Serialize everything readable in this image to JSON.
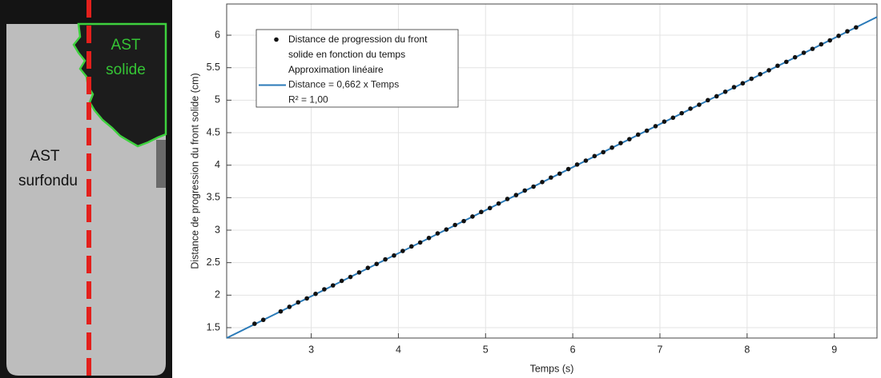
{
  "photo": {
    "solid_label": [
      "AST",
      "solide"
    ],
    "liquid_label": [
      "AST",
      "surfondu"
    ]
  },
  "chart_data": {
    "type": "scatter",
    "x_label": "Temps (s)",
    "y_label": "Distance de progression du front solide (cm)",
    "xlim": [
      2.03,
      9.49
    ],
    "ylim": [
      1.34,
      6.48
    ],
    "xticks": [
      3,
      4,
      5,
      6,
      7,
      8,
      9
    ],
    "yticks": [
      1.5,
      2,
      2.5,
      3,
      3.5,
      4,
      4.5,
      5,
      5.5,
      6
    ],
    "grid": true,
    "legend": "upper left",
    "series": [
      {
        "name": "Distance de progression du front solide en fonction du temps",
        "color": "#111111",
        "mode": "markers",
        "x": [
          2.35,
          2.45,
          2.65,
          2.75,
          2.85,
          2.95,
          3.05,
          3.15,
          3.25,
          3.35,
          3.45,
          3.55,
          3.65,
          3.75,
          3.85,
          3.95,
          4.05,
          4.15,
          4.25,
          4.35,
          4.45,
          4.55,
          4.65,
          4.75,
          4.85,
          4.95,
          5.05,
          5.15,
          5.25,
          5.35,
          5.45,
          5.55,
          5.65,
          5.75,
          5.85,
          5.95,
          6.05,
          6.15,
          6.25,
          6.35,
          6.45,
          6.55,
          6.65,
          6.75,
          6.85,
          6.95,
          7.05,
          7.15,
          7.25,
          7.35,
          7.45,
          7.55,
          7.65,
          7.75,
          7.85,
          7.95,
          8.05,
          8.15,
          8.25,
          8.35,
          8.45,
          8.55,
          8.65,
          8.75,
          8.85,
          8.95,
          9.05,
          9.15,
          9.25
        ],
        "values": [
          1.56,
          1.62,
          1.75,
          1.82,
          1.89,
          1.95,
          2.02,
          2.09,
          2.15,
          2.22,
          2.28,
          2.35,
          2.42,
          2.48,
          2.55,
          2.61,
          2.68,
          2.75,
          2.81,
          2.88,
          2.95,
          3.01,
          3.08,
          3.14,
          3.21,
          3.28,
          3.34,
          3.41,
          3.48,
          3.54,
          3.61,
          3.67,
          3.74,
          3.81,
          3.87,
          3.94,
          4.01,
          4.07,
          4.14,
          4.2,
          4.27,
          4.34,
          4.4,
          4.47,
          4.53,
          4.6,
          4.67,
          4.73,
          4.8,
          4.87,
          4.93,
          5.0,
          5.06,
          5.13,
          5.2,
          5.26,
          5.33,
          5.4,
          5.46,
          5.53,
          5.59,
          5.66,
          5.73,
          5.79,
          5.86,
          5.92,
          5.99,
          6.06,
          6.12
        ]
      },
      {
        "name": "Approximation linéaire",
        "color": "#2a7ab8",
        "mode": "line",
        "x": [
          2.03,
          9.49
        ],
        "values": [
          1.34,
          6.28
        ],
        "annotations": [
          "Distance = 0,662 x Temps",
          "R² = 1,00"
        ]
      }
    ]
  }
}
